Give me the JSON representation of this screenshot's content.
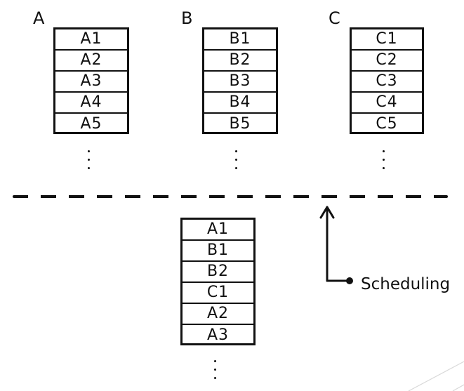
{
  "queues": [
    {
      "id": "A",
      "title": "A",
      "items": [
        "A1",
        "A2",
        "A3",
        "A4",
        "A5"
      ]
    },
    {
      "id": "B",
      "title": "B",
      "items": [
        "B1",
        "B2",
        "B3",
        "B4",
        "B5"
      ]
    },
    {
      "id": "C",
      "title": "C",
      "items": [
        "C1",
        "C2",
        "C3",
        "C4",
        "C5"
      ]
    }
  ],
  "merged": {
    "items": [
      "A1",
      "B1",
      "B2",
      "C1",
      "A2",
      "A3"
    ]
  },
  "annotation": {
    "label": "Scheduling"
  },
  "colors": {
    "ink": "#111111",
    "background": "#ffffff",
    "curl": "#d9d9d9"
  }
}
